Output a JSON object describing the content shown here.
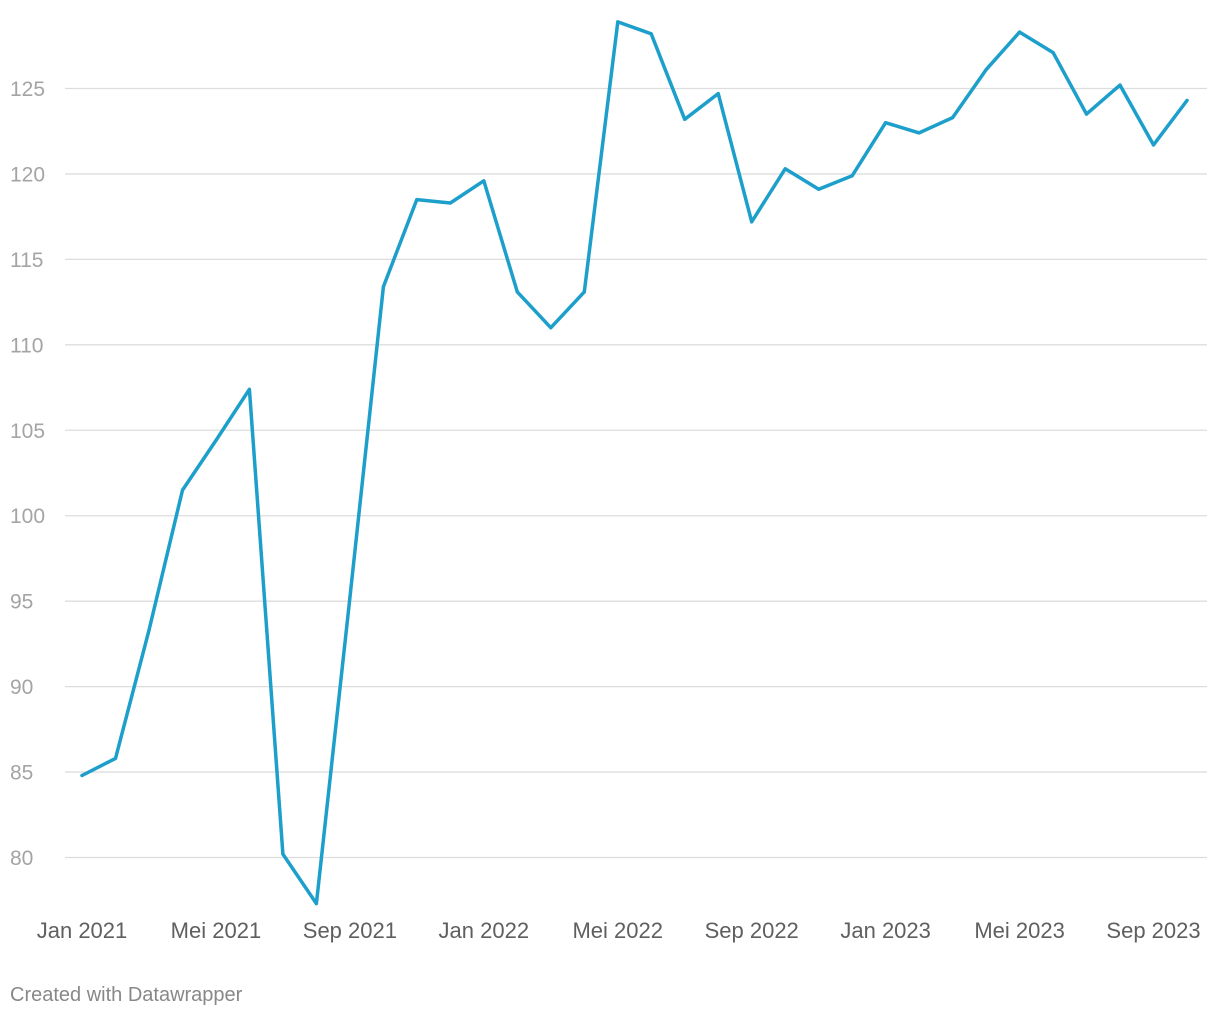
{
  "credit": "Created with Datawrapper",
  "colors": {
    "line": "#1d9fcb",
    "grid": "#dddddd",
    "ytick": "#a4a4a4",
    "xtick": "#5f5f5f"
  },
  "chart_data": {
    "type": "line",
    "title": "",
    "xlabel": "",
    "ylabel": "",
    "ylim": [
      77.3,
      129
    ],
    "yticks": [
      80,
      85,
      90,
      95,
      100,
      105,
      110,
      115,
      120,
      125
    ],
    "grid": true,
    "xtick_labels": [
      {
        "label": "Jan 2021",
        "x": "2021-01"
      },
      {
        "label": "Mei 2021",
        "x": "2021-05"
      },
      {
        "label": "Sep 2021",
        "x": "2021-09"
      },
      {
        "label": "Jan 2022",
        "x": "2022-01"
      },
      {
        "label": "Mei 2022",
        "x": "2022-05"
      },
      {
        "label": "Sep 2022",
        "x": "2022-09"
      },
      {
        "label": "Jan 2023",
        "x": "2023-01"
      },
      {
        "label": "Mei 2023",
        "x": "2023-05"
      },
      {
        "label": "Sep 2023",
        "x": "2023-09"
      }
    ],
    "x": [
      "2021-01",
      "2021-02",
      "2021-03",
      "2021-04",
      "2021-05",
      "2021-06",
      "2021-07",
      "2021-08",
      "2021-09",
      "2021-10",
      "2021-11",
      "2021-12",
      "2022-01",
      "2022-02",
      "2022-03",
      "2022-04",
      "2022-05",
      "2022-06",
      "2022-07",
      "2022-08",
      "2022-09",
      "2022-10",
      "2022-11",
      "2022-12",
      "2023-01",
      "2023-02",
      "2023-03",
      "2023-04",
      "2023-05",
      "2023-06",
      "2023-07",
      "2023-08",
      "2023-09",
      "2023-10"
    ],
    "series": [
      {
        "values": [
          84.8,
          85.8,
          93.3,
          101.5,
          104.4,
          107.4,
          80.2,
          77.3,
          95.2,
          113.4,
          118.5,
          118.3,
          119.6,
          113.1,
          111.0,
          113.1,
          128.9,
          128.2,
          123.2,
          124.7,
          117.2,
          120.3,
          119.1,
          119.9,
          123.0,
          122.4,
          123.3,
          126.1,
          128.3,
          127.1,
          123.5,
          125.2,
          121.7,
          124.3
        ]
      }
    ]
  }
}
